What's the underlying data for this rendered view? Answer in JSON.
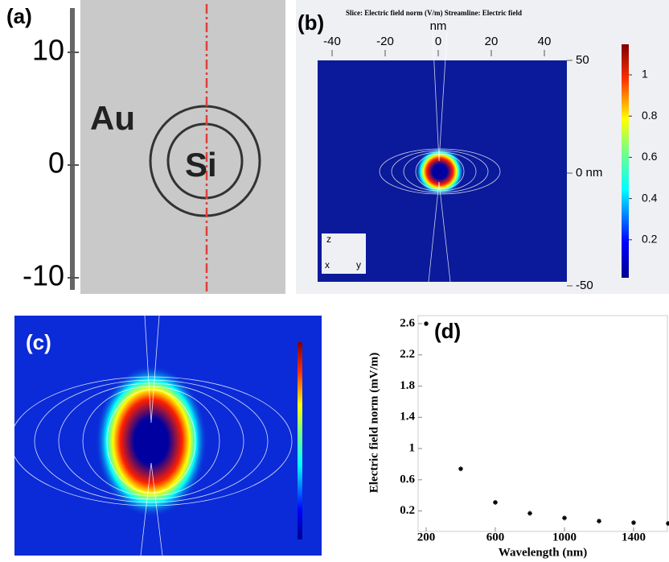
{
  "panel_a": {
    "label": "(a)",
    "yticks": [
      10,
      0,
      -10
    ],
    "outer_label": "Au",
    "inner_label": "Si"
  },
  "panel_b": {
    "label": "(b)",
    "title": "Slice: Electric field norm (V/m)  Streamline: Electric field",
    "xlabel": "nm",
    "xticks": [
      -40,
      -20,
      0,
      20,
      40
    ],
    "zticks": [
      50,
      {
        "value": 0,
        "label": "0 nm"
      },
      -50
    ],
    "colorbar_ticks": [
      1,
      0.8,
      0.6,
      0.4,
      0.2
    ],
    "axes": [
      "z",
      "x",
      "y"
    ]
  },
  "panel_c": {
    "label": "(c)"
  },
  "chart_data": {
    "type": "scatter",
    "label": "(d)",
    "xlabel": "Wavelength (nm)",
    "ylabel": "Electric field norm (mV/m)",
    "x": [
      200,
      400,
      600,
      800,
      1000,
      1200,
      1400,
      1600
    ],
    "values": [
      2.6,
      0.74,
      0.31,
      0.17,
      0.11,
      0.07,
      0.05,
      0.04
    ],
    "xlim": [
      200,
      1600
    ],
    "ylim": [
      0,
      2.6
    ],
    "xticks": [
      200,
      600,
      1000,
      1400
    ],
    "yticks": [
      0.2,
      0.6,
      1,
      1.4,
      1.8,
      2.2,
      2.6
    ],
    "color": "#000000"
  }
}
